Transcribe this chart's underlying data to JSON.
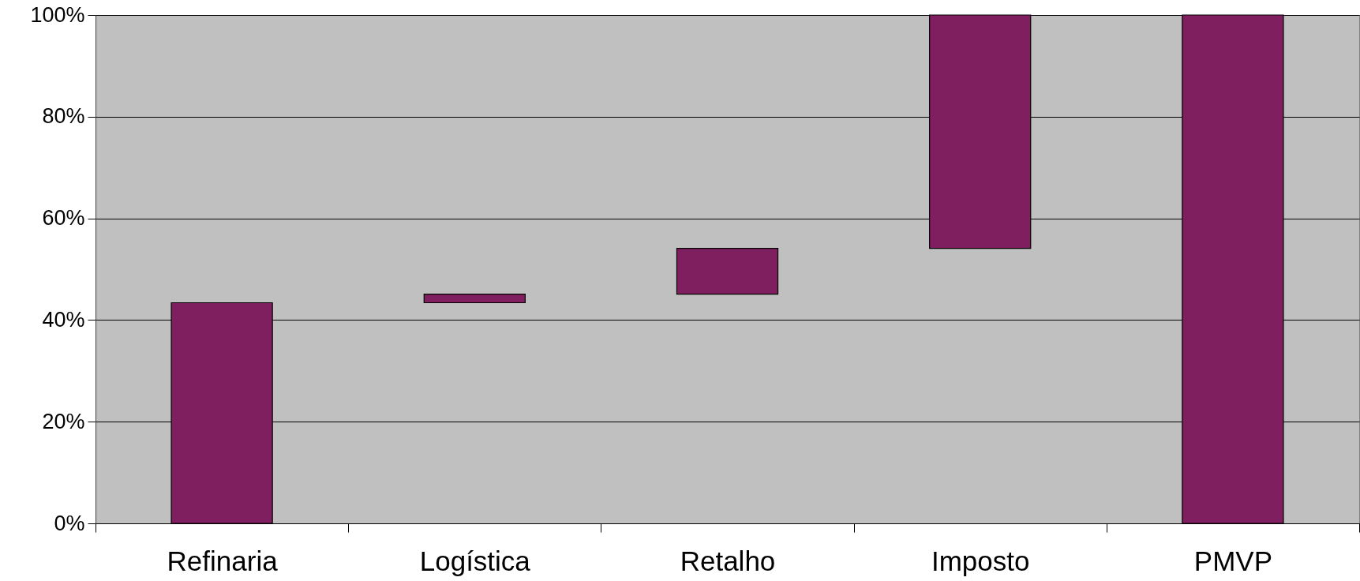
{
  "chart_data": {
    "type": "bar",
    "categories": [
      "Refinaria",
      "Logística",
      "Retalho",
      "Imposto",
      "PMVP"
    ],
    "values": [
      43.4,
      1.7,
      9.0,
      45.9,
      100
    ],
    "base": [
      0,
      43.4,
      45.1,
      54.1,
      0
    ],
    "color": "#7f1f5f",
    "ylim": [
      0,
      100
    ],
    "yticks": [
      {
        "value": 0,
        "label": "0%"
      },
      {
        "value": 20,
        "label": "20%"
      },
      {
        "value": 40,
        "label": "40%"
      },
      {
        "value": 60,
        "label": "60%"
      },
      {
        "value": 80,
        "label": "80%"
      },
      {
        "value": 100,
        "label": "100%"
      }
    ],
    "grid": "y"
  }
}
